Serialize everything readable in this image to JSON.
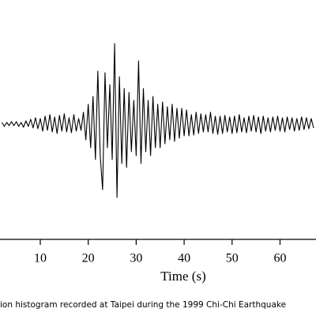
{
  "chart_data": {
    "type": "line",
    "x_label": "Time (s)",
    "caption": "ion histogram recorded at Taipei during the 1999 Chi-Chi Earthquake",
    "xlim": [
      1.6,
      67.5
    ],
    "xticks": [
      10,
      20,
      30,
      40,
      50,
      60
    ],
    "ylim": [
      -1.46,
      1.57
    ],
    "color": "#000000",
    "x": [
      2,
      2.5,
      3,
      3.5,
      4,
      4.5,
      5,
      5.5,
      6,
      6.5,
      7,
      7.5,
      8,
      8.5,
      9,
      9.5,
      10,
      10.5,
      11,
      11.5,
      12,
      12.5,
      13,
      13.5,
      14,
      14.5,
      15,
      15.5,
      16,
      16.5,
      17,
      17.5,
      18,
      18.5,
      19,
      19.5,
      20,
      20.5,
      21,
      21.5,
      22,
      22.5,
      23,
      23.5,
      24,
      24.5,
      25,
      25.5,
      26,
      26.5,
      27,
      27.5,
      28,
      28.5,
      29,
      29.5,
      30,
      30.5,
      31,
      31.5,
      32,
      32.5,
      33,
      33.5,
      34,
      34.5,
      35,
      35.5,
      36,
      36.5,
      37,
      37.5,
      38,
      38.5,
      39,
      39.5,
      40,
      40.5,
      41,
      41.5,
      42,
      42.5,
      43,
      43.5,
      44,
      44.5,
      45,
      45.5,
      46,
      46.5,
      47,
      47.5,
      48,
      48.5,
      49,
      49.5,
      50,
      50.5,
      51,
      51.5,
      52,
      52.5,
      53,
      53.5,
      54,
      54.5,
      55,
      55.5,
      56,
      56.5,
      57,
      57.5,
      58,
      58.5,
      59,
      59.5,
      60,
      60.5,
      61,
      61.5,
      62,
      62.5,
      63,
      63.5,
      64,
      64.5,
      65,
      65.5,
      66,
      66.5,
      67
    ],
    "values": [
      0.02,
      -0.03,
      0.02,
      -0.02,
      0.03,
      -0.02,
      0.03,
      -0.03,
      0.02,
      -0.04,
      0.04,
      -0.03,
      0.06,
      -0.05,
      0.08,
      -0.06,
      0.07,
      -0.09,
      0.1,
      -0.08,
      0.12,
      -0.1,
      0.09,
      -0.12,
      0.11,
      -0.09,
      0.13,
      -0.1,
      0.08,
      -0.11,
      0.12,
      -0.09,
      0.07,
      -0.08,
      0.15,
      -0.2,
      0.25,
      -0.3,
      0.35,
      -0.45,
      0.67,
      -0.4,
      -0.83,
      0.65,
      -0.3,
      0.5,
      -0.45,
      1.02,
      -0.93,
      0.6,
      -0.5,
      0.45,
      -0.55,
      0.4,
      -0.35,
      0.3,
      -0.4,
      0.8,
      -0.5,
      0.45,
      -0.35,
      0.3,
      -0.4,
      0.35,
      -0.3,
      0.25,
      -0.3,
      0.28,
      -0.25,
      0.22,
      -0.2,
      0.25,
      -0.22,
      0.2,
      -0.18,
      0.2,
      -0.15,
      0.18,
      -0.15,
      0.12,
      -0.14,
      0.15,
      -0.12,
      0.13,
      -0.1,
      0.12,
      -0.1,
      0.15,
      -0.12,
      0.1,
      -0.13,
      0.1,
      -0.12,
      0.11,
      -0.1,
      0.09,
      -0.12,
      0.1,
      -0.11,
      0.12,
      -0.1,
      0.08,
      -0.11,
      0.1,
      -0.09,
      0.11,
      -0.1,
      0.09,
      -0.12,
      0.1,
      -0.09,
      0.08,
      -0.1,
      0.09,
      -0.08,
      0.1,
      -0.09,
      0.08,
      -0.1,
      0.09,
      -0.07,
      0.08,
      -0.09,
      0.07,
      -0.08,
      0.09,
      -0.07,
      0.08,
      -0.06,
      0.07,
      -0.05
    ]
  }
}
